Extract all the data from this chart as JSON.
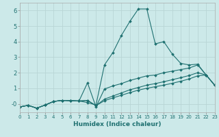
{
  "xlabel": "Humidex (Indice chaleur)",
  "xlim": [
    0,
    23
  ],
  "ylim": [
    -0.55,
    6.5
  ],
  "yticks": [
    0,
    1,
    2,
    3,
    4,
    5,
    6
  ],
  "ytick_labels": [
    "-0",
    "1",
    "2",
    "3",
    "4",
    "5",
    "6"
  ],
  "xticks": [
    0,
    1,
    2,
    3,
    4,
    5,
    6,
    7,
    8,
    9,
    10,
    11,
    12,
    13,
    14,
    15,
    16,
    17,
    18,
    19,
    20,
    21,
    22,
    23
  ],
  "bg_color": "#cce9e9",
  "grid_color": "#b8d5d5",
  "line_color": "#1e7070",
  "x": [
    0,
    1,
    2,
    3,
    4,
    5,
    6,
    7,
    8,
    9,
    10,
    11,
    12,
    13,
    14,
    15,
    16,
    17,
    18,
    19,
    20,
    21,
    22,
    23
  ],
  "series1": [
    -0.2,
    -0.1,
    -0.28,
    -0.08,
    0.15,
    0.22,
    0.2,
    0.18,
    0.08,
    -0.08,
    2.5,
    3.3,
    4.4,
    5.3,
    6.1,
    6.1,
    3.85,
    4.0,
    3.2,
    2.6,
    2.5,
    2.55,
    1.85,
    1.2
  ],
  "series2": [
    -0.2,
    -0.1,
    -0.28,
    -0.08,
    0.15,
    0.22,
    0.2,
    0.18,
    1.35,
    -0.2,
    0.95,
    1.15,
    1.3,
    1.5,
    1.65,
    1.8,
    1.85,
    2.0,
    2.1,
    2.2,
    2.3,
    2.5,
    1.85,
    1.2
  ],
  "series3": [
    -0.2,
    -0.1,
    -0.28,
    -0.08,
    0.15,
    0.22,
    0.2,
    0.18,
    0.22,
    -0.12,
    0.3,
    0.5,
    0.7,
    0.9,
    1.05,
    1.2,
    1.3,
    1.42,
    1.55,
    1.68,
    1.82,
    2.0,
    1.85,
    1.2
  ],
  "series4": [
    -0.2,
    -0.1,
    -0.28,
    -0.08,
    0.15,
    0.22,
    0.2,
    0.18,
    0.22,
    -0.12,
    0.2,
    0.38,
    0.55,
    0.72,
    0.88,
    1.0,
    1.1,
    1.2,
    1.32,
    1.45,
    1.6,
    1.8,
    1.85,
    1.2
  ]
}
